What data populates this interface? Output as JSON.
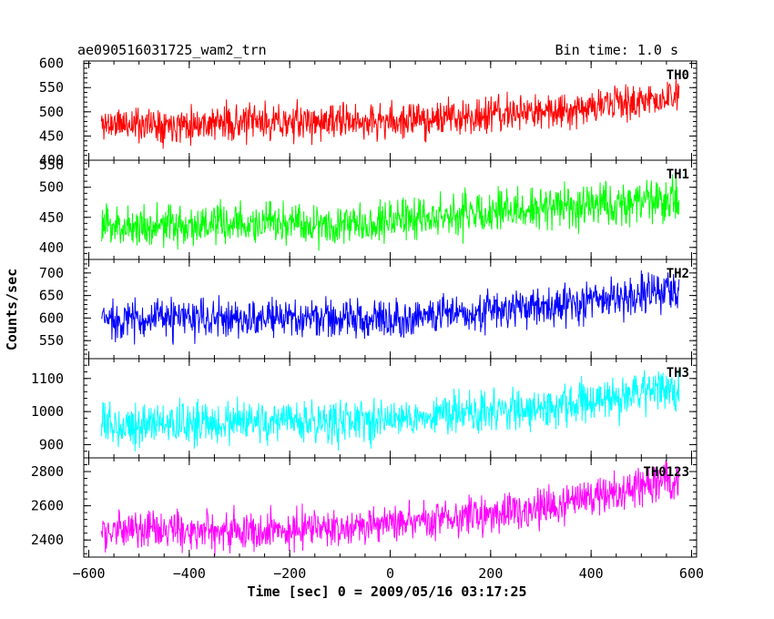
{
  "header": {
    "left_title": "ae090516031725_wam2_trn",
    "right_title": "Bin time: 1.0 s"
  },
  "chart_data": {
    "type": "line",
    "xlabel": "Time [sec] 0 = 2009/05/16 03:17:25",
    "ylabel": "Counts/sec",
    "xlim": [
      -610,
      610
    ],
    "xticks": [
      -600,
      -400,
      -200,
      0,
      200,
      400,
      600
    ],
    "xtick_labels": [
      "−600",
      "−400",
      "−200",
      "0",
      "200",
      "400",
      "600"
    ],
    "x_range": [
      -575,
      575
    ],
    "bin_time": 1.0,
    "panels": [
      {
        "name": "TH0",
        "color": "#ff0000",
        "ylim": [
          400,
          605
        ],
        "yticks": [
          400,
          450,
          500,
          550,
          600
        ],
        "ytick_labels": [
          "400",
          "450",
          "500",
          "550",
          "600"
        ],
        "trend": [
          [
            -575,
            475
          ],
          [
            0,
            480
          ],
          [
            300,
            500
          ],
          [
            575,
            530
          ]
        ],
        "noise_amplitude": 32,
        "seed": 11
      },
      {
        "name": "TH1",
        "color": "#00ff00",
        "ylim": [
          380,
          545
        ],
        "yticks": [
          400,
          450,
          500
        ],
        "ytick_labels": [
          "400",
          "450",
          "500"
        ],
        "extra_top_label": "550",
        "trend": [
          [
            -575,
            435
          ],
          [
            -100,
            440
          ],
          [
            300,
            465
          ],
          [
            575,
            480
          ]
        ],
        "noise_amplitude": 30,
        "seed": 23
      },
      {
        "name": "TH2",
        "color": "#0000ff",
        "ylim": [
          510,
          730
        ],
        "yticks": [
          550,
          600,
          650,
          700
        ],
        "ytick_labels": [
          "550",
          "600",
          "650",
          "700"
        ],
        "trend": [
          [
            -575,
            598
          ],
          [
            0,
            600
          ],
          [
            300,
            625
          ],
          [
            575,
            660
          ]
        ],
        "noise_amplitude": 38,
        "seed": 37
      },
      {
        "name": "TH3",
        "color": "#00ffff",
        "ylim": [
          860,
          1160
        ],
        "yticks": [
          900,
          1000,
          1100
        ],
        "ytick_labels": [
          "900",
          "1000",
          "1100"
        ],
        "trend": [
          [
            -575,
            960
          ],
          [
            -100,
            970
          ],
          [
            300,
            1010
          ],
          [
            575,
            1060
          ]
        ],
        "noise_amplitude": 55,
        "seed": 53
      },
      {
        "name": "TH0123",
        "color": "#ff00ff",
        "ylim": [
          2300,
          2880
        ],
        "yticks": [
          2400,
          2600,
          2800
        ],
        "ytick_labels": [
          "2400",
          "2600",
          "2800"
        ],
        "trend": [
          [
            -575,
            2450
          ],
          [
            -100,
            2470
          ],
          [
            300,
            2580
          ],
          [
            575,
            2760
          ]
        ],
        "noise_amplitude": 95,
        "seed": 71
      }
    ]
  }
}
